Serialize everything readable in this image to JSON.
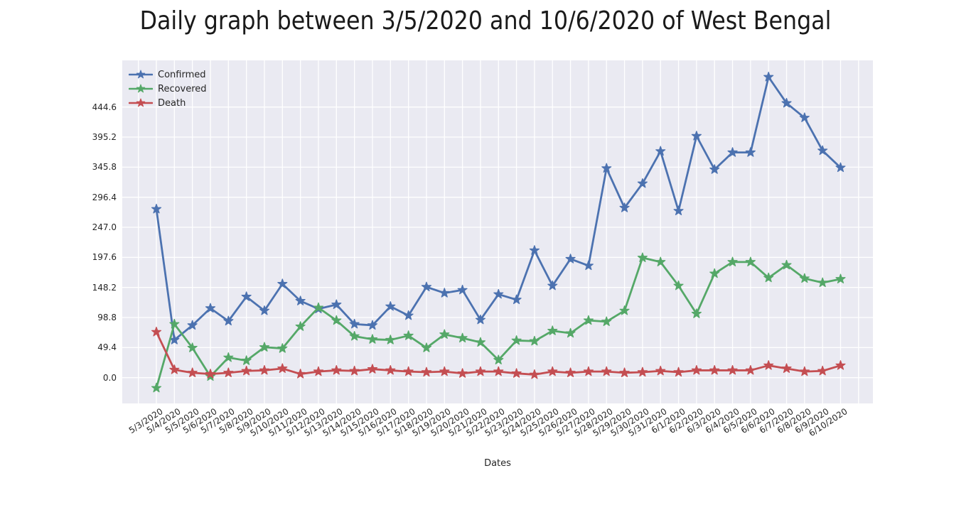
{
  "chart_data": {
    "type": "line",
    "title": "Daily graph between 3/5/2020 and 10/6/2020 of West Bengal",
    "xlabel": "Dates",
    "ylabel": "",
    "grid": true,
    "background": "#EAEAF2",
    "gridline_color": "#FFFFFF",
    "marker": "star",
    "legend_position": "upper left",
    "ylim": [
      -42.4,
      521.3
    ],
    "ytick_labels": [
      "0.0",
      "49.4",
      "98.8",
      "148.2",
      "197.6",
      "247.0",
      "296.4",
      "345.8",
      "395.2",
      "444.6"
    ],
    "x": [
      "5/3/2020",
      "5/4/2020",
      "5/5/2020",
      "5/6/2020",
      "5/7/2020",
      "5/8/2020",
      "5/9/2020",
      "5/10/2020",
      "5/11/2020",
      "5/12/2020",
      "5/13/2020",
      "5/14/2020",
      "5/15/2020",
      "5/16/2020",
      "5/17/2020",
      "5/18/2020",
      "5/19/2020",
      "5/20/2020",
      "5/21/2020",
      "5/22/2020",
      "5/23/2020",
      "5/24/2020",
      "5/25/2020",
      "5/26/2020",
      "5/27/2020",
      "5/28/2020",
      "5/29/2020",
      "5/30/2020",
      "5/31/2020",
      "6/1/2020",
      "6/2/2020",
      "6/3/2020",
      "6/4/2020",
      "6/5/2020",
      "6/6/2020",
      "6/7/2020",
      "6/8/2020",
      "6/9/2020",
      "6/10/2020"
    ],
    "series": [
      {
        "name": "Confirmed",
        "color": "#4C72B0",
        "values": [
          277,
          62,
          86,
          114,
          93,
          133,
          110,
          154,
          126,
          113,
          120,
          88,
          86,
          117,
          102,
          149,
          139,
          144,
          95,
          137,
          128,
          209,
          151,
          195,
          184,
          344,
          279,
          319,
          372,
          274,
          397,
          342,
          370,
          370,
          494,
          451,
          427,
          373,
          345
        ]
      },
      {
        "name": "Recovered",
        "color": "#55A868",
        "values": [
          -17,
          88,
          49,
          2,
          33,
          28,
          50,
          48,
          84,
          115,
          94,
          68,
          63,
          62,
          69,
          49,
          71,
          65,
          58,
          29,
          61,
          60,
          77,
          73,
          94,
          92,
          110,
          197,
          190,
          151,
          105,
          171,
          190,
          190,
          164,
          185,
          163,
          156,
          162
        ]
      },
      {
        "name": "Death",
        "color": "#C44E52",
        "values": [
          75,
          13,
          8,
          6,
          8,
          11,
          12,
          15,
          6,
          10,
          12,
          11,
          14,
          12,
          10,
          9,
          10,
          7,
          10,
          10,
          7,
          5,
          10,
          8,
          10,
          10,
          8,
          9,
          11,
          9,
          12,
          12,
          12,
          12,
          20,
          15,
          10,
          11,
          20
        ]
      }
    ]
  }
}
